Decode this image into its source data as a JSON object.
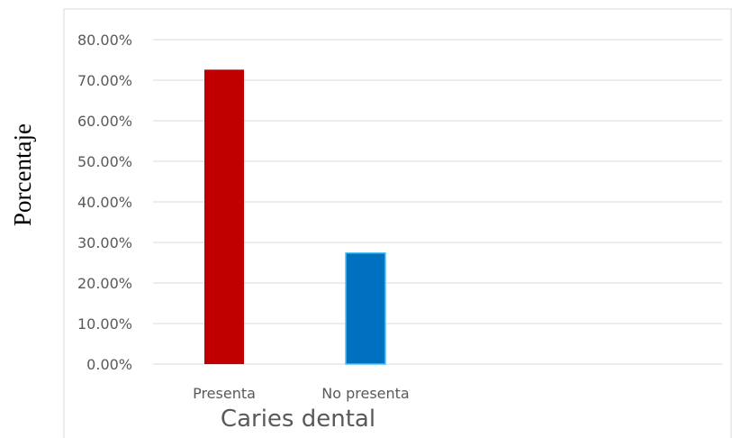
{
  "chart_data": {
    "type": "bar",
    "title": "",
    "xlabel": "Caries dental",
    "ylabel": "Porcentaje",
    "categories": [
      "Presenta",
      "No presenta"
    ],
    "values": [
      72.6,
      27.4
    ],
    "colors": [
      "#c00000",
      "#0070c0"
    ],
    "ylim": [
      0,
      80
    ],
    "yticks": [
      0,
      10,
      20,
      30,
      40,
      50,
      60,
      70,
      80
    ],
    "ytick_format": "percent-2dp",
    "grid": true,
    "legend": "none"
  }
}
